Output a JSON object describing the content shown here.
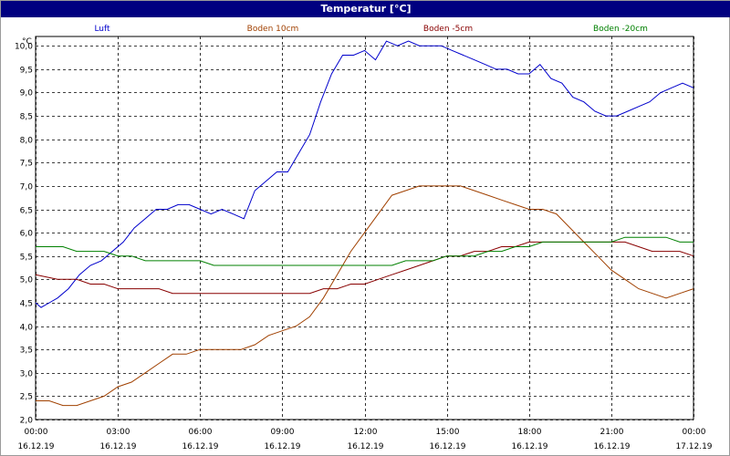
{
  "window": {
    "title": "Temperatur [°C]"
  },
  "chart_data": {
    "type": "line",
    "title": "Temperatur [°C]",
    "ylabel": "°C",
    "ylim": [
      2.0,
      10.2
    ],
    "yticks": [
      2.0,
      2.5,
      3.0,
      3.5,
      4.0,
      4.5,
      5.0,
      5.5,
      6.0,
      6.5,
      7.0,
      7.5,
      8.0,
      8.5,
      9.0,
      9.5,
      10.0
    ],
    "ytick_labels": [
      "2,0",
      "2,5",
      "3,0",
      "3,5",
      "4,0",
      "4,5",
      "5,0",
      "5,5",
      "6,0",
      "6,5",
      "7,0",
      "7,5",
      "8,0",
      "8,5",
      "9,0",
      "9,5",
      "10,0"
    ],
    "xlim": [
      0,
      24
    ],
    "xticks": [
      {
        "time": "00:00",
        "date": "16.12.19"
      },
      {
        "time": "03:00",
        "date": "16.12.19"
      },
      {
        "time": "06:00",
        "date": "16.12.19"
      },
      {
        "time": "09:00",
        "date": "16.12.19"
      },
      {
        "time": "12:00",
        "date": "16.12.19"
      },
      {
        "time": "15:00",
        "date": "16.12.19"
      },
      {
        "time": "18:00",
        "date": "16.12.19"
      },
      {
        "time": "21:00",
        "date": "16.12.19"
      },
      {
        "time": "00:00",
        "date": "17.12.19"
      }
    ],
    "grid": true,
    "legend_position": "top",
    "series": [
      {
        "name": "Luft",
        "color": "#0000cc",
        "x": [
          0,
          0.2,
          0.5,
          0.8,
          1.2,
          1.6,
          2.0,
          2.4,
          2.8,
          3.2,
          3.6,
          4.0,
          4.4,
          4.8,
          5.2,
          5.6,
          6.0,
          6.4,
          6.8,
          7.2,
          7.6,
          8.0,
          8.4,
          8.8,
          9.2,
          9.6,
          10.0,
          10.4,
          10.8,
          11.2,
          11.6,
          12.0,
          12.4,
          12.8,
          13.2,
          13.6,
          14.0,
          14.4,
          14.8,
          15.2,
          15.6,
          16.0,
          16.4,
          16.8,
          17.2,
          17.6,
          18.0,
          18.4,
          18.8,
          19.2,
          19.6,
          20.0,
          20.4,
          20.8,
          21.2,
          21.6,
          22.0,
          22.4,
          22.8,
          23.2,
          23.6,
          24.0
        ],
        "values": [
          4.5,
          4.4,
          4.5,
          4.6,
          4.8,
          5.1,
          5.3,
          5.4,
          5.6,
          5.8,
          6.1,
          6.3,
          6.5,
          6.5,
          6.6,
          6.6,
          6.5,
          6.4,
          6.5,
          6.4,
          6.3,
          6.9,
          7.1,
          7.3,
          7.3,
          7.7,
          8.1,
          8.8,
          9.4,
          9.8,
          9.8,
          9.9,
          9.7,
          10.1,
          10.0,
          10.1,
          10.0,
          10.0,
          10.0,
          9.9,
          9.8,
          9.7,
          9.6,
          9.5,
          9.5,
          9.4,
          9.4,
          9.6,
          9.3,
          9.2,
          8.9,
          8.8,
          8.6,
          8.5,
          8.5,
          8.6,
          8.7,
          8.8,
          9.0,
          9.1,
          9.2,
          9.1
        ]
      },
      {
        "name": "Boden 10cm",
        "color": "#a04000",
        "x": [
          0,
          0.5,
          1.0,
          1.5,
          2.0,
          2.5,
          3.0,
          3.5,
          4.0,
          4.5,
          5.0,
          5.5,
          6.0,
          6.5,
          7.0,
          7.5,
          8.0,
          8.5,
          9.0,
          9.5,
          10.0,
          10.5,
          11.0,
          11.5,
          12.0,
          12.5,
          13.0,
          13.5,
          14.0,
          14.5,
          15.0,
          15.5,
          16.0,
          16.5,
          17.0,
          17.5,
          18.0,
          18.5,
          19.0,
          19.5,
          20.0,
          20.5,
          21.0,
          21.5,
          22.0,
          22.5,
          23.0,
          23.5,
          24.0
        ],
        "values": [
          2.4,
          2.4,
          2.3,
          2.3,
          2.4,
          2.5,
          2.7,
          2.8,
          3.0,
          3.2,
          3.4,
          3.4,
          3.5,
          3.5,
          3.5,
          3.5,
          3.6,
          3.8,
          3.9,
          4.0,
          4.2,
          4.6,
          5.1,
          5.6,
          6.0,
          6.4,
          6.8,
          6.9,
          7.0,
          7.0,
          7.0,
          7.0,
          6.9,
          6.8,
          6.7,
          6.6,
          6.5,
          6.5,
          6.4,
          6.1,
          5.8,
          5.5,
          5.2,
          5.0,
          4.8,
          4.7,
          4.6,
          4.7,
          4.8
        ]
      },
      {
        "name": "Boden -5cm",
        "color": "#880000",
        "x": [
          0,
          0.8,
          1.5,
          2.0,
          2.5,
          3.0,
          3.5,
          4.0,
          4.5,
          5.0,
          6.0,
          7.0,
          8.0,
          9.0,
          9.5,
          10.0,
          10.5,
          11.0,
          11.5,
          12.0,
          12.5,
          13.0,
          13.5,
          14.0,
          14.5,
          15.0,
          15.5,
          16.0,
          16.5,
          17.0,
          17.5,
          18.0,
          19.0,
          20.0,
          21.0,
          21.5,
          22.0,
          22.5,
          23.0,
          23.5,
          24.0
        ],
        "values": [
          5.1,
          5.0,
          5.0,
          4.9,
          4.9,
          4.8,
          4.8,
          4.8,
          4.8,
          4.7,
          4.7,
          4.7,
          4.7,
          4.7,
          4.7,
          4.7,
          4.8,
          4.8,
          4.9,
          4.9,
          5.0,
          5.1,
          5.2,
          5.3,
          5.4,
          5.5,
          5.5,
          5.6,
          5.6,
          5.7,
          5.7,
          5.8,
          5.8,
          5.8,
          5.8,
          5.8,
          5.7,
          5.6,
          5.6,
          5.6,
          5.5
        ]
      },
      {
        "name": "Boden -20cm",
        "color": "#008000",
        "x": [
          0,
          0.5,
          1.0,
          1.5,
          2.0,
          2.5,
          3.0,
          3.5,
          4.0,
          5.0,
          6.0,
          6.5,
          7.0,
          8.0,
          9.0,
          10.0,
          11.0,
          12.0,
          12.5,
          13.0,
          13.5,
          14.0,
          14.5,
          15.0,
          15.5,
          16.0,
          16.5,
          17.0,
          17.5,
          18.0,
          18.5,
          19.0,
          20.0,
          20.5,
          21.0,
          21.5,
          22.0,
          22.5,
          23.0,
          23.5,
          24.0
        ],
        "values": [
          5.7,
          5.7,
          5.7,
          5.6,
          5.6,
          5.6,
          5.5,
          5.5,
          5.4,
          5.4,
          5.4,
          5.3,
          5.3,
          5.3,
          5.3,
          5.3,
          5.3,
          5.3,
          5.3,
          5.3,
          5.4,
          5.4,
          5.4,
          5.5,
          5.5,
          5.5,
          5.6,
          5.6,
          5.7,
          5.7,
          5.8,
          5.8,
          5.8,
          5.8,
          5.8,
          5.9,
          5.9,
          5.9,
          5.9,
          5.8,
          5.8
        ]
      }
    ]
  }
}
